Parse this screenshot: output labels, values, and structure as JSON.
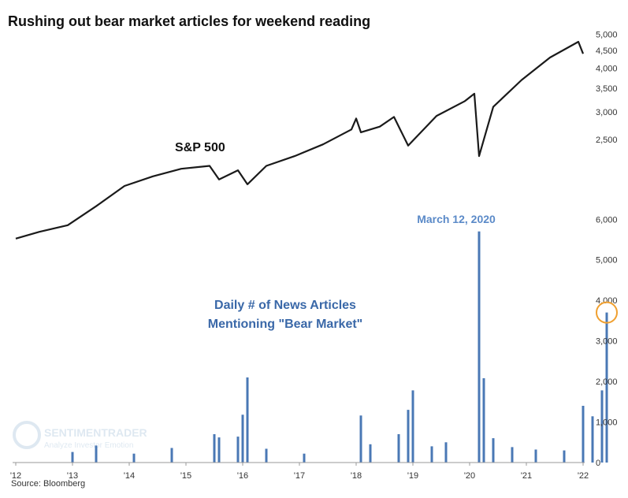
{
  "chart_data": [
    {
      "type": "line",
      "title": "Rushing out bear market articles for weekend reading",
      "series": [
        {
          "name": "S&P 500",
          "color": "#1a1a1a",
          "x": [
            "2012-01",
            "2012-06",
            "2012-12",
            "2013-06",
            "2013-12",
            "2014-06",
            "2014-12",
            "2015-06",
            "2015-08",
            "2015-12",
            "2016-02",
            "2016-06",
            "2016-12",
            "2017-06",
            "2017-12",
            "2018-01",
            "2018-02",
            "2018-06",
            "2018-09",
            "2018-12",
            "2019-06",
            "2019-12",
            "2020-02",
            "2020-03",
            "2020-06",
            "2020-12",
            "2021-06",
            "2021-12",
            "2022-01"
          ],
          "values": [
            1300,
            1360,
            1420,
            1610,
            1840,
            1960,
            2060,
            2100,
            1920,
            2040,
            1860,
            2100,
            2240,
            2420,
            2670,
            2870,
            2620,
            2720,
            2900,
            2400,
            2920,
            3220,
            3380,
            2240,
            3100,
            3700,
            4290,
            4760,
            4400
          ]
        }
      ],
      "y_ticks": [
        "2,500",
        "3,000",
        "3,500",
        "4,000",
        "4,500",
        "5,000"
      ],
      "ylim": [
        1100,
        5200
      ],
      "log_scale": true
    },
    {
      "type": "bar",
      "series": [
        {
          "name": "Daily # of News Articles Mentioning \"Bear Market\"",
          "color": "#4a78b5",
          "spikes": [
            {
              "x": "2013-01",
              "value": 260
            },
            {
              "x": "2013-06",
              "value": 420
            },
            {
              "x": "2014-02",
              "value": 220
            },
            {
              "x": "2014-10",
              "value": 360
            },
            {
              "x": "2015-07",
              "value": 700
            },
            {
              "x": "2015-08",
              "value": 620
            },
            {
              "x": "2015-12",
              "value": 640
            },
            {
              "x": "2016-01",
              "value": 1180
            },
            {
              "x": "2016-02",
              "value": 2100
            },
            {
              "x": "2016-06",
              "value": 340
            },
            {
              "x": "2017-02",
              "value": 220
            },
            {
              "x": "2018-02",
              "value": 1160
            },
            {
              "x": "2018-04",
              "value": 450
            },
            {
              "x": "2018-10",
              "value": 700
            },
            {
              "x": "2018-12",
              "value": 1300
            },
            {
              "x": "2019-01",
              "value": 1780
            },
            {
              "x": "2019-05",
              "value": 400
            },
            {
              "x": "2019-08",
              "value": 500
            },
            {
              "x": "2020-03",
              "value": 5700
            },
            {
              "x": "2020-04",
              "value": 2080
            },
            {
              "x": "2020-06",
              "value": 600
            },
            {
              "x": "2020-10",
              "value": 380
            },
            {
              "x": "2021-03",
              "value": 320
            },
            {
              "x": "2021-09",
              "value": 300
            },
            {
              "x": "2022-01",
              "value": 1400
            },
            {
              "x": "2022-03",
              "value": 1140
            },
            {
              "x": "2022-05",
              "value": 1780
            },
            {
              "x": "2022-06",
              "value": 3700
            }
          ]
        }
      ],
      "y_ticks": [
        "0",
        "1,000",
        "2,000",
        "3,000",
        "4,000",
        "5,000",
        "6,000"
      ],
      "ylim": [
        0,
        6200
      ]
    }
  ],
  "labels": {
    "title": "Rushing out bear market articles for weekend reading",
    "sp500": "S&P 500",
    "articles_line1": "Daily # of News Articles",
    "articles_line2": "Mentioning \"Bear Market\"",
    "spike_annotation": "March 12, 2020",
    "source": "Source: Bloomberg"
  },
  "x_ticks": [
    "'12",
    "'13",
    "'14",
    "'15",
    "'16",
    "'17",
    "'18",
    "'19",
    "'20",
    "'21",
    "'22"
  ],
  "watermark": {
    "brand": "SENTIMENTRADER",
    "tagline": "Analyze Investor Emotion"
  },
  "highlight": {
    "x": "2022-06",
    "color": "#f0a030"
  },
  "colors": {
    "line": "#1a1a1a",
    "bars": "#4a78b5",
    "annotation": "#5b8ac8",
    "axis_text": "#333333"
  }
}
